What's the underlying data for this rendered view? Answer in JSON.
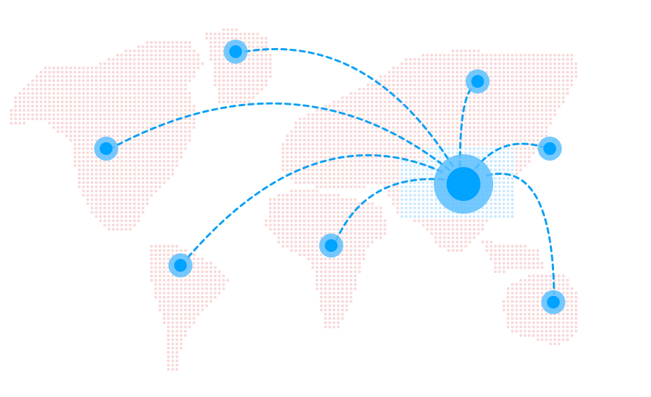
{
  "colors": {
    "land_dot": "#f8dada",
    "highlight_dot": "#cdeafd",
    "node": "#00a3ff",
    "node_halo": "#5cc0ff",
    "route": "#0aa0f5"
  },
  "hub": {
    "name": "china-hub"
  },
  "destinations": [
    {
      "name": "greenland"
    },
    {
      "name": "north-america"
    },
    {
      "name": "south-america"
    },
    {
      "name": "africa"
    },
    {
      "name": "russia"
    },
    {
      "name": "japan"
    },
    {
      "name": "australia"
    }
  ]
}
